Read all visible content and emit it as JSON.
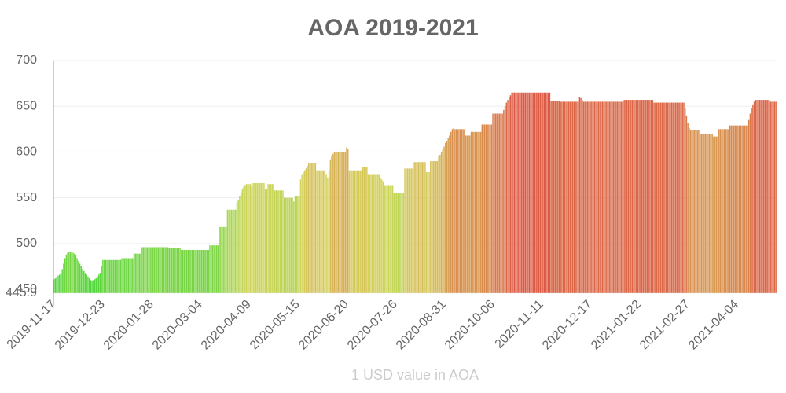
{
  "chart_data": {
    "type": "bar",
    "title": "AOA 2019-2021",
    "x_label": "1 USD value in AOA",
    "categories": [
      "2019-11-17",
      null,
      null,
      null,
      null,
      null,
      null,
      null,
      null,
      null,
      null,
      null,
      null,
      null,
      null,
      null,
      null,
      null,
      null,
      null,
      null,
      null,
      null,
      null,
      null,
      null,
      null,
      null,
      null,
      null,
      null,
      null,
      null,
      null,
      null,
      null,
      "2019-12-23",
      null,
      null,
      null,
      null,
      null,
      null,
      null,
      null,
      null,
      null,
      null,
      null,
      null,
      null,
      null,
      null,
      null,
      null,
      null,
      null,
      null,
      null,
      null,
      null,
      null,
      null,
      null,
      null,
      null,
      null,
      null,
      null,
      null,
      null,
      null,
      "2020-01-28",
      null,
      null,
      null,
      null,
      null,
      null,
      null,
      null,
      null,
      null,
      null,
      null,
      null,
      null,
      null,
      null,
      null,
      null,
      null,
      null,
      null,
      null,
      null,
      null,
      null,
      null,
      null,
      null,
      null,
      null,
      null,
      null,
      null,
      null,
      null,
      "2020-03-04",
      null,
      null,
      null,
      null,
      null,
      null,
      null,
      null,
      null,
      null,
      null,
      null,
      null,
      null,
      null,
      null,
      null,
      null,
      null,
      null,
      null,
      null,
      null,
      null,
      null,
      null,
      null,
      null,
      null,
      null,
      null,
      null,
      null,
      null,
      null,
      "2020-04-09",
      null,
      null,
      null,
      null,
      null,
      null,
      null,
      null,
      null,
      null,
      null,
      null,
      null,
      null,
      null,
      null,
      null,
      null,
      null,
      null,
      null,
      null,
      null,
      null,
      null,
      null,
      null,
      null,
      null,
      null,
      null,
      null,
      null,
      null,
      null,
      "2020-05-15",
      null,
      null,
      null,
      null,
      null,
      null,
      null,
      null,
      null,
      null,
      null,
      null,
      null,
      null,
      null,
      null,
      null,
      null,
      null,
      null,
      null,
      null,
      null,
      null,
      null,
      null,
      null,
      null,
      null,
      null,
      null,
      null,
      null,
      null,
      null,
      "2020-06-20",
      null,
      null,
      null,
      null,
      null,
      null,
      null,
      null,
      null,
      null,
      null,
      null,
      null,
      null,
      null,
      null,
      null,
      null,
      null,
      null,
      null,
      null,
      null,
      null,
      null,
      null,
      null,
      null,
      null,
      null,
      null,
      null,
      null,
      null,
      null,
      "2020-07-26",
      null,
      null,
      null,
      null,
      null,
      null,
      null,
      null,
      null,
      null,
      null,
      null,
      null,
      null,
      null,
      null,
      null,
      null,
      null,
      null,
      null,
      null,
      null,
      null,
      null,
      null,
      null,
      null,
      null,
      null,
      null,
      null,
      null,
      null,
      null,
      "2020-08-31",
      null,
      null,
      null,
      null,
      null,
      null,
      null,
      null,
      null,
      null,
      null,
      null,
      null,
      null,
      null,
      null,
      null,
      null,
      null,
      null,
      null,
      null,
      null,
      null,
      null,
      null,
      null,
      null,
      null,
      null,
      null,
      null,
      null,
      null,
      null,
      "2020-10-06",
      null,
      null,
      null,
      null,
      null,
      null,
      null,
      null,
      null,
      null,
      null,
      null,
      null,
      null,
      null,
      null,
      null,
      null,
      null,
      null,
      null,
      null,
      null,
      null,
      null,
      null,
      null,
      null,
      null,
      null,
      null,
      null,
      null,
      null,
      null,
      "2020-11-11",
      null,
      null,
      null,
      null,
      null,
      null,
      null,
      null,
      null,
      null,
      null,
      null,
      null,
      null,
      null,
      null,
      null,
      null,
      null,
      null,
      null,
      null,
      null,
      null,
      null,
      null,
      null,
      null,
      null,
      null,
      null,
      null,
      null,
      null,
      null,
      "2020-12-17",
      null,
      null,
      null,
      null,
      null,
      null,
      null,
      null,
      null,
      null,
      null,
      null,
      null,
      null,
      null,
      null,
      null,
      null,
      null,
      null,
      null,
      null,
      null,
      null,
      null,
      null,
      null,
      null,
      null,
      null,
      null,
      null,
      null,
      null,
      null,
      "2021-01-22",
      null,
      null,
      null,
      null,
      null,
      null,
      null,
      null,
      null,
      null,
      null,
      null,
      null,
      null,
      null,
      null,
      null,
      null,
      null,
      null,
      null,
      null,
      null,
      null,
      null,
      null,
      null,
      null,
      null,
      null,
      null,
      null,
      null,
      null,
      null,
      "2021-02-27",
      null,
      null,
      null,
      null,
      null,
      null,
      null,
      null,
      null,
      null,
      null,
      null,
      null,
      null,
      null,
      null,
      null,
      null,
      null,
      null,
      null,
      null,
      null,
      null,
      null,
      null,
      null,
      null,
      null,
      null,
      null,
      null,
      null,
      null,
      null,
      "2021-04-04",
      null,
      null,
      null,
      null,
      null,
      null,
      null,
      null,
      null,
      null,
      null,
      null,
      null,
      null,
      null,
      null,
      null,
      null,
      null,
      null,
      null,
      null,
      null,
      null,
      null,
      null,
      null,
      null,
      null
    ],
    "values": [
      461,
      462,
      463,
      465,
      466,
      468,
      472,
      478,
      484,
      488,
      490,
      491,
      491,
      490,
      490,
      489,
      487,
      484,
      481,
      478,
      475,
      472,
      470,
      468,
      466,
      464,
      462,
      460,
      459,
      460,
      461,
      462,
      464,
      466,
      468,
      475,
      482,
      482,
      482,
      482,
      482,
      482,
      482,
      482,
      482,
      482,
      482,
      482,
      482,
      482,
      484,
      484,
      484,
      484,
      484,
      484,
      484,
      484,
      484,
      489,
      489,
      489,
      489,
      489,
      489,
      496,
      496,
      496,
      496,
      496,
      496,
      496,
      496,
      496,
      496,
      496,
      496,
      496,
      496,
      496,
      496,
      496,
      496,
      496,
      496,
      495,
      495,
      495,
      495,
      495,
      495,
      495,
      495,
      495,
      493,
      493,
      493,
      493,
      493,
      493,
      493,
      493,
      493,
      493,
      493,
      493,
      493,
      493,
      493,
      493,
      493,
      493,
      493,
      493,
      493,
      498,
      498,
      498,
      498,
      498,
      498,
      498,
      518,
      518,
      518,
      518,
      518,
      518,
      537,
      537,
      537,
      537,
      537,
      537,
      537,
      545,
      548,
      552,
      556,
      560,
      562,
      563,
      565,
      565,
      565,
      565,
      562,
      566,
      566,
      566,
      566,
      566,
      566,
      566,
      566,
      566,
      560,
      560,
      565,
      565,
      565,
      565,
      565,
      558,
      558,
      558,
      558,
      558,
      558,
      558,
      550,
      550,
      550,
      550,
      550,
      550,
      550,
      546,
      552,
      552,
      552,
      552,
      570,
      575,
      578,
      580,
      582,
      585,
      588,
      588,
      588,
      588,
      588,
      588,
      580,
      580,
      580,
      580,
      580,
      580,
      580,
      575,
      572,
      580,
      592,
      596,
      598,
      600,
      600,
      600,
      600,
      600,
      600,
      600,
      600,
      600,
      605,
      603,
      580,
      580,
      580,
      580,
      580,
      580,
      580,
      580,
      580,
      580,
      584,
      584,
      584,
      584,
      575,
      575,
      575,
      575,
      575,
      575,
      575,
      575,
      575,
      572,
      570,
      568,
      563,
      563,
      563,
      563,
      563,
      563,
      563,
      555,
      555,
      555,
      555,
      555,
      555,
      555,
      555,
      582,
      582,
      582,
      582,
      582,
      582,
      582,
      589,
      589,
      589,
      589,
      589,
      589,
      589,
      589,
      589,
      578,
      578,
      578,
      590,
      590,
      590,
      590,
      590,
      590,
      595,
      597,
      600,
      603,
      606,
      610,
      612,
      615,
      618,
      622,
      625,
      626,
      625,
      625,
      625,
      625,
      625,
      625,
      625,
      625,
      618,
      618,
      618,
      618,
      622,
      622,
      622,
      622,
      622,
      622,
      622,
      622,
      630,
      630,
      630,
      630,
      630,
      630,
      630,
      630,
      642,
      642,
      642,
      642,
      642,
      642,
      642,
      642,
      646,
      650,
      654,
      657,
      660,
      662,
      665,
      665,
      665,
      665,
      665,
      665,
      665,
      665,
      665,
      665,
      665,
      665,
      665,
      665,
      665,
      665,
      665,
      665,
      665,
      665,
      665,
      665,
      665,
      665,
      665,
      665,
      665,
      665,
      665,
      656,
      656,
      656,
      656,
      656,
      656,
      656,
      655,
      655,
      655,
      655,
      655,
      655,
      655,
      655,
      655,
      655,
      655,
      655,
      655,
      655,
      660,
      659,
      657,
      655,
      655,
      655,
      655,
      655,
      655,
      655,
      655,
      655,
      655,
      655,
      655,
      655,
      655,
      655,
      655,
      655,
      655,
      655,
      655,
      655,
      655,
      655,
      655,
      655,
      655,
      655,
      655,
      655,
      655,
      657,
      657,
      657,
      657,
      657,
      657,
      657,
      657,
      657,
      657,
      657,
      657,
      657,
      657,
      657,
      657,
      657,
      657,
      657,
      657,
      657,
      657,
      654,
      654,
      654,
      654,
      654,
      654,
      654,
      654,
      654,
      654,
      654,
      654,
      654,
      654,
      654,
      654,
      654,
      654,
      654,
      654,
      654,
      654,
      654,
      648,
      640,
      632,
      626,
      624,
      624,
      624,
      624,
      624,
      624,
      624,
      620,
      620,
      620,
      620,
      620,
      620,
      620,
      620,
      620,
      620,
      617,
      617,
      617,
      617,
      625,
      625,
      625,
      625,
      625,
      625,
      625,
      625,
      629,
      629,
      629,
      629,
      629,
      629,
      629,
      629,
      629,
      629,
      629,
      629,
      629,
      629,
      635,
      642,
      648,
      652,
      655,
      657,
      657,
      657,
      657,
      657,
      657,
      657,
      657,
      657,
      657,
      657,
      655,
      655,
      655,
      655,
      655
    ],
    "colors": [
      "#4fd63a",
      "#d4d45a",
      "#dc5a44"
    ],
    "ylim": [
      445.9,
      700
    ],
    "yticks": [
      445.9,
      450,
      500,
      550,
      600,
      650,
      700
    ],
    "grid": true
  }
}
